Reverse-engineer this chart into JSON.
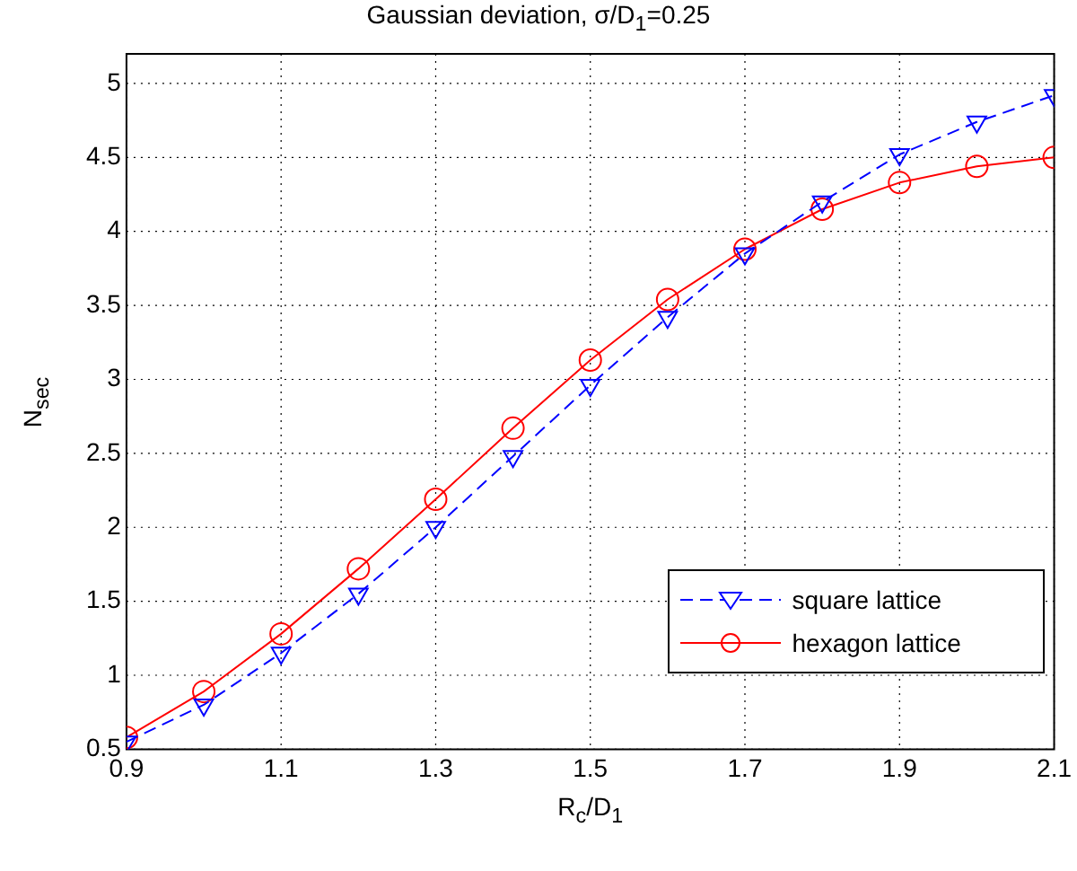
{
  "chart_data": {
    "type": "line",
    "title": "Gaussian deviation, σ/D$_{1}$=0.25",
    "xlabel": "R$_{c}$/D$_{1}$",
    "ylabel": "N$_{sec}$",
    "x": [
      0.9,
      1.0,
      1.1,
      1.2,
      1.3,
      1.4,
      1.5,
      1.6,
      1.7,
      1.8,
      1.9,
      2.0,
      2.1
    ],
    "series": [
      {
        "name": "square lattice",
        "color": "#0000ff",
        "marker": "triangle",
        "line_style": "dashed",
        "values": [
          0.55,
          0.8,
          1.15,
          1.55,
          2.0,
          2.48,
          2.96,
          3.42,
          3.85,
          4.2,
          4.52,
          4.74,
          4.92
        ]
      },
      {
        "name": "hexagon lattice",
        "color": "#ff0000",
        "marker": "circle",
        "line_style": "solid",
        "values": [
          0.58,
          0.89,
          1.28,
          1.72,
          2.19,
          2.67,
          3.13,
          3.54,
          3.88,
          4.15,
          4.33,
          4.44,
          4.5
        ]
      }
    ],
    "xlim": [
      0.9,
      2.1
    ],
    "xticks": [
      0.9,
      1.1,
      1.3,
      1.5,
      1.7,
      1.9,
      2.1
    ],
    "ylim": [
      0.5,
      5.2
    ],
    "yticks": [
      0.5,
      1,
      1.5,
      2,
      2.5,
      3,
      3.5,
      4,
      4.5,
      5
    ],
    "grid": true,
    "legend": "bottom right"
  }
}
